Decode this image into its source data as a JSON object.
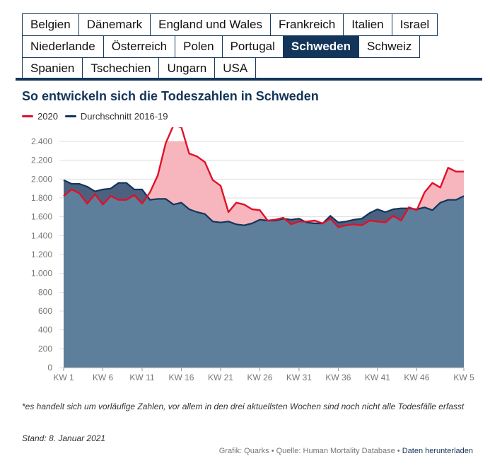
{
  "tabs": {
    "rows": [
      [
        "Belgien",
        "Dänemark",
        "England und Wales",
        "Frankreich",
        "Italien",
        "Israel"
      ],
      [
        "Niederlande",
        "Österreich",
        "Polen",
        "Portugal",
        "Schweden",
        "Schweiz"
      ],
      [
        "Spanien",
        "Tschechien",
        "Ungarn",
        "USA"
      ]
    ],
    "active": "Schweden"
  },
  "title": "So entwickeln sich die Todeszahlen in Schweden",
  "legend": {
    "current_label": "2020",
    "average_label": "Durchschnitt 2016-19"
  },
  "colors": {
    "current": "#e0102a",
    "average": "#14355a",
    "average_fill": "#5e7f9b",
    "excess_fill": "#f7b6bd",
    "grid": "#dddddd",
    "nav": "#14355a"
  },
  "chart_data": {
    "type": "area",
    "x_ticks": [
      "KW 1",
      "KW 6",
      "KW 11",
      "KW 16",
      "KW 21",
      "KW 26",
      "KW 31",
      "KW 36",
      "KW 41",
      "KW 46",
      "KW 5"
    ],
    "ylim": [
      0,
      2400
    ],
    "y_ticks": [
      0,
      200,
      400,
      600,
      800,
      1000,
      1200,
      1400,
      1600,
      1800,
      2000,
      2200,
      2400
    ],
    "y_tick_labels": [
      "0",
      "200",
      "400",
      "600",
      "800",
      "1.000",
      "1.200",
      "1.400",
      "1.600",
      "1.800",
      "2.000",
      "2.200",
      "2.400"
    ],
    "grid": true,
    "legend_position": "top-left",
    "series": [
      {
        "name": "2020",
        "values": [
          1820,
          1890,
          1850,
          1740,
          1840,
          1730,
          1820,
          1780,
          1780,
          1830,
          1740,
          1860,
          2040,
          2380,
          2570,
          2550,
          2270,
          2240,
          2180,
          1990,
          1930,
          1650,
          1750,
          1730,
          1680,
          1670,
          1560,
          1570,
          1590,
          1520,
          1550,
          1550,
          1560,
          1530,
          1580,
          1490,
          1510,
          1520,
          1510,
          1560,
          1550,
          1540,
          1610,
          1560,
          1700,
          1670,
          1860,
          1960,
          1910,
          2120,
          2080,
          2080
        ]
      },
      {
        "name": "Durchschnitt 2016-19",
        "values": [
          1990,
          1950,
          1950,
          1920,
          1870,
          1890,
          1900,
          1960,
          1960,
          1890,
          1890,
          1780,
          1790,
          1790,
          1730,
          1750,
          1680,
          1650,
          1630,
          1550,
          1540,
          1550,
          1520,
          1510,
          1530,
          1570,
          1560,
          1560,
          1580,
          1570,
          1580,
          1540,
          1530,
          1530,
          1610,
          1540,
          1550,
          1570,
          1580,
          1640,
          1680,
          1650,
          1680,
          1690,
          1690,
          1680,
          1700,
          1670,
          1750,
          1780,
          1780,
          1820
        ]
      }
    ]
  },
  "footnote": "*es handelt sich um vorläufige Zahlen, vor allem in den drei aktuellsten Wochen sind noch nicht alle Todesfälle erfasst",
  "stand": "Stand: 8. Januar 2021",
  "credits": {
    "text": "Grafik: Quarks • Quelle: Human Mortality Database •",
    "link": "Daten herunterladen"
  }
}
